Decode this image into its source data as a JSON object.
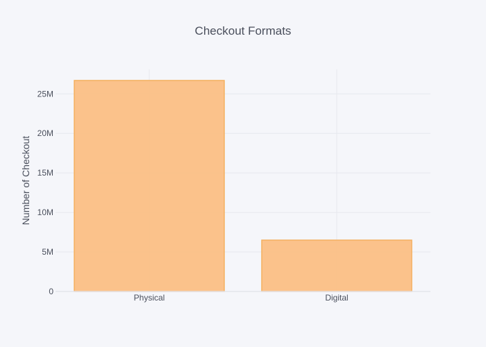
{
  "chart_data": {
    "type": "bar",
    "title": "Checkout Formats",
    "xlabel": "",
    "ylabel": "Number of Checkout",
    "categories": [
      "Physical",
      "Digital"
    ],
    "values": [
      26700000,
      6500000
    ],
    "ylim": [
      0,
      28100000
    ],
    "yticks": [
      0,
      5000000,
      10000000,
      15000000,
      20000000,
      25000000
    ],
    "ytick_labels": [
      "0",
      "5M",
      "10M",
      "15M",
      "20M",
      "25M"
    ],
    "grid": true,
    "legend": "none",
    "colors": {
      "background": "#f5f6fa",
      "bar_fill": "#fbbf85",
      "bar_stroke": "#f5b060",
      "grid": "#e6e8ee",
      "text": "#4a4f5c",
      "tick_text": "#4a4f5c"
    }
  }
}
